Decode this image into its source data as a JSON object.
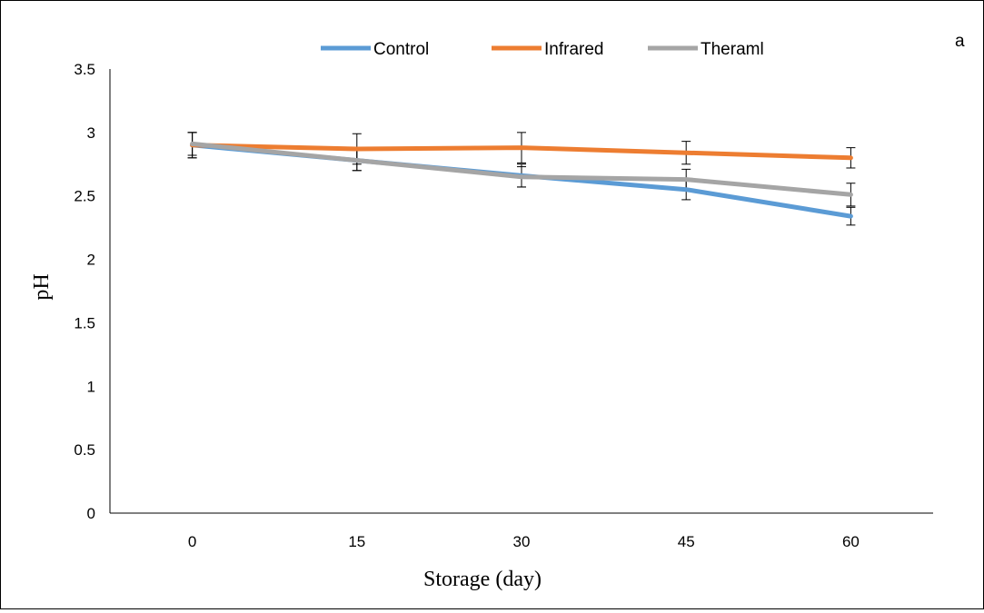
{
  "chart_data": {
    "type": "line",
    "panel_label": "a",
    "xlabel": "Storage (day)",
    "ylabel": "pH",
    "x": [
      0,
      15,
      30,
      45,
      60
    ],
    "x_tick_labels": [
      "0",
      "15",
      "30",
      "45",
      "60"
    ],
    "ylim": [
      0,
      3.5
    ],
    "y_ticks": [
      0,
      0.5,
      1,
      1.5,
      2,
      2.5,
      3,
      3.5
    ],
    "y_tick_labels": [
      "0",
      "0.5",
      "1",
      "1.5",
      "2",
      "2.5",
      "3",
      "3.5"
    ],
    "grid": false,
    "legend_position": "top",
    "series": [
      {
        "name": "Control",
        "color": "#5B9BD5",
        "values": [
          2.9,
          2.78,
          2.66,
          2.55,
          2.34
        ],
        "errors": [
          0.1,
          0.08,
          0.09,
          0.08,
          0.07
        ]
      },
      {
        "name": "Infrared",
        "color": "#ED7D31",
        "values": [
          2.9,
          2.87,
          2.88,
          2.84,
          2.8
        ],
        "errors": [
          0.1,
          0.12,
          0.12,
          0.09,
          0.08
        ]
      },
      {
        "name": "Theraml",
        "color": "#A5A5A5",
        "values": [
          2.91,
          2.78,
          2.65,
          2.63,
          2.51
        ],
        "errors": [
          0.09,
          0.08,
          0.08,
          0.08,
          0.09
        ]
      }
    ]
  }
}
